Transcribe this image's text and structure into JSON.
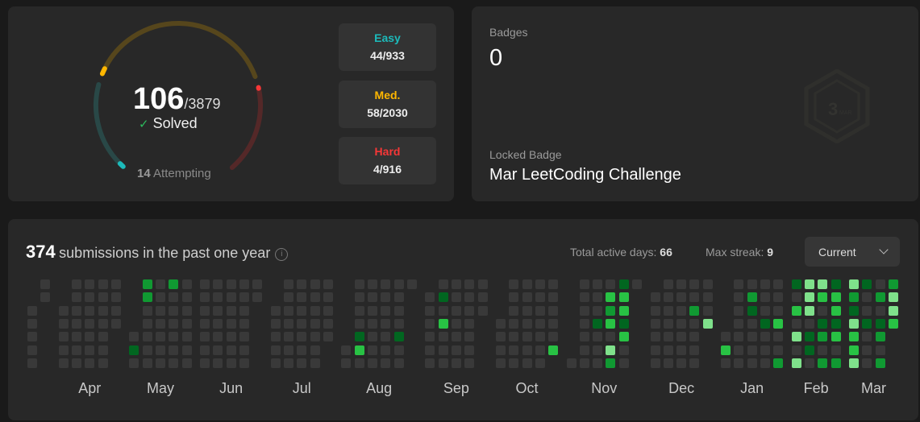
{
  "progress": {
    "solved": 106,
    "total": 3879,
    "solved_label": "Solved",
    "attempting_count": "14",
    "attempting_label": "Attempting",
    "difficulties": [
      {
        "label": "Easy",
        "solved": 44,
        "total": 933,
        "value": "44/933",
        "color": "#1cbaba",
        "track": "#294847"
      },
      {
        "label": "Med.",
        "solved": 58,
        "total": 2030,
        "value": "58/2030",
        "color": "#ffb700",
        "track": "#56461c"
      },
      {
        "label": "Hard",
        "solved": 4,
        "total": 916,
        "value": "4/916",
        "color": "#f63737",
        "track": "#542828"
      }
    ]
  },
  "badges": {
    "title": "Badges",
    "count": "0",
    "locked_label": "Locked Badge",
    "locked_name": "Mar LeetCoding Challenge",
    "badge_icon_text": "3 MAR"
  },
  "submissions": {
    "count": "374",
    "text": "submissions in the past one year",
    "info_icon": "i",
    "active_days_label": "Total active days:",
    "active_days": "66",
    "max_streak_label": "Max streak:",
    "max_streak": "9",
    "dropdown_value": "Current",
    "level_colors": [
      "#393939",
      "#016620",
      "#109932",
      "#28c244",
      "#7fe18b"
    ],
    "months": [
      {
        "label": "",
        "year": 2025,
        "month": 3,
        "first_day": 25,
        "last_day": 31,
        "levels": {}
      },
      {
        "label": "Apr",
        "year": 2025,
        "month": 4,
        "first_day": 1,
        "last_day": 30,
        "levels": {}
      },
      {
        "label": "May",
        "year": 2025,
        "month": 5,
        "first_day": 1,
        "last_day": 31,
        "levels": {
          "2": 1,
          "4": 2,
          "5": 2,
          "18": 2
        }
      },
      {
        "label": "Jun",
        "year": 2025,
        "month": 6,
        "first_day": 1,
        "last_day": 30,
        "levels": {}
      },
      {
        "label": "Jul",
        "year": 2025,
        "month": 7,
        "first_day": 1,
        "last_day": 31,
        "levels": {}
      },
      {
        "label": "Aug",
        "year": 2025,
        "month": 8,
        "first_day": 1,
        "last_day": 31,
        "levels": {
          "7": 1,
          "8": 3,
          "28": 1
        }
      },
      {
        "label": "Sep",
        "year": 2025,
        "month": 9,
        "first_day": 1,
        "last_day": 30,
        "levels": {
          "8": 1,
          "10": 3
        }
      },
      {
        "label": "Oct",
        "year": 2025,
        "month": 10,
        "first_day": 1,
        "last_day": 31,
        "levels": {
          "31": 3
        }
      },
      {
        "label": "Nov",
        "year": 2025,
        "month": 11,
        "first_day": 1,
        "last_day": 30,
        "levels": {
          "12": 1,
          "17": 3,
          "18": 2,
          "19": 3,
          "21": 4,
          "22": 2,
          "23": 1,
          "24": 3,
          "25": 3,
          "26": 1,
          "27": 3
        }
      },
      {
        "label": "Dec",
        "year": 2025,
        "month": 12,
        "first_day": 1,
        "last_day": 31,
        "levels": {
          "23": 2,
          "31": 4
        }
      },
      {
        "label": "Jan",
        "year": 2026,
        "month": 1,
        "first_day": 1,
        "last_day": 31,
        "levels": {
          "2": 3,
          "12": 2,
          "13": 1,
          "21": 1,
          "28": 3,
          "31": 2
        }
      },
      {
        "label": "Feb",
        "year": 2026,
        "month": 2,
        "first_day": 1,
        "last_day": 28,
        "levels": {
          "1": 1,
          "3": 3,
          "5": 4,
          "7": 4,
          "8": 4,
          "9": 4,
          "10": 4,
          "12": 1,
          "13": 1,
          "15": 4,
          "16": 3,
          "18": 1,
          "19": 2,
          "21": 2,
          "22": 1,
          "23": 3,
          "24": 3,
          "25": 1,
          "26": 3,
          "28": 2
        }
      },
      {
        "label": "Mar",
        "year": 2026,
        "month": 3,
        "first_day": 1,
        "last_day": 25,
        "levels": {
          "1": 4,
          "2": 2,
          "3": 1,
          "4": 4,
          "5": 3,
          "6": 3,
          "7": 4,
          "8": 1,
          "11": 1,
          "16": 2,
          "18": 1,
          "19": 2,
          "21": 2,
          "22": 2,
          "23": 4,
          "24": 4,
          "25": 3
        }
      }
    ]
  }
}
